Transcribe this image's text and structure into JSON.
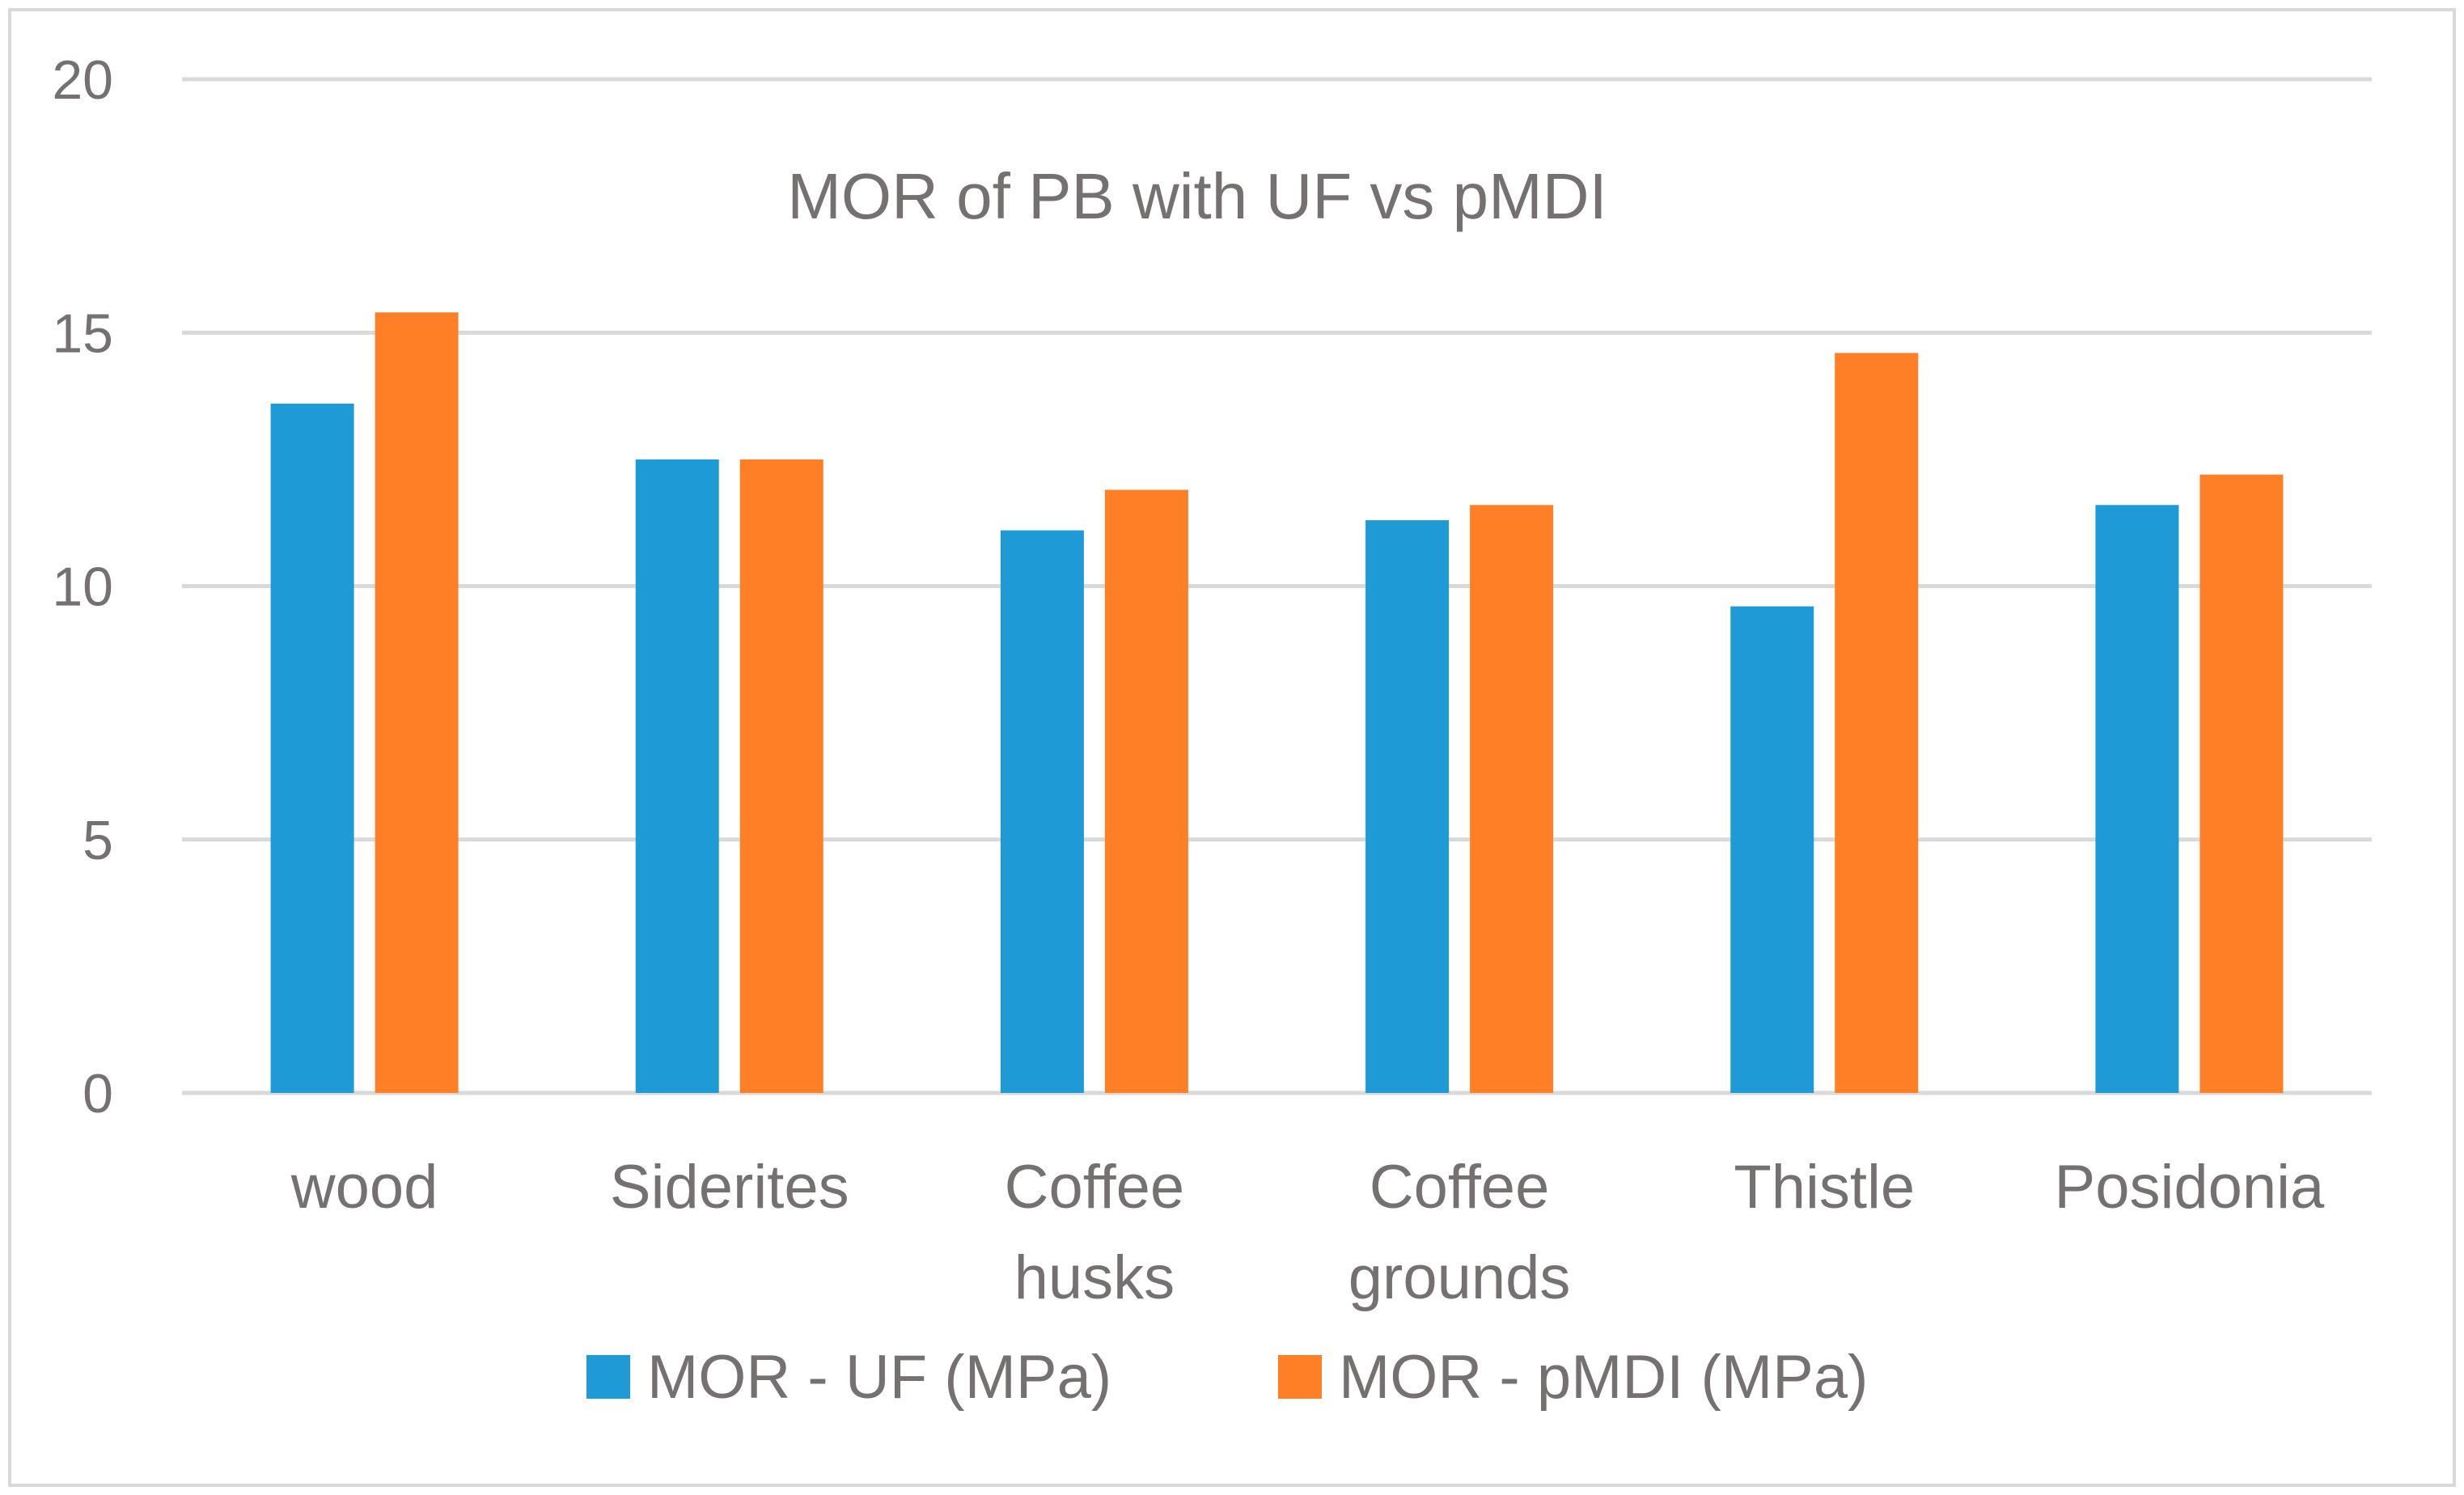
{
  "chart_data": {
    "type": "bar",
    "title": "MOR of PB with UF vs pMDI",
    "xlabel": "",
    "ylabel": "",
    "categories": [
      [
        "wood"
      ],
      [
        "Siderites"
      ],
      [
        "Coffee",
        "husks"
      ],
      [
        "Coffee",
        "grounds"
      ],
      [
        "Thistle"
      ],
      [
        "Posidonia"
      ]
    ],
    "series": [
      {
        "name": "MOR - UF (MPa)",
        "color": "#1E9BD7",
        "values": [
          13.6,
          12.5,
          11.1,
          11.3,
          9.6,
          11.6
        ]
      },
      {
        "name": "MOR - pMDI (MPa)",
        "color": "#FF7F27",
        "values": [
          15.4,
          12.5,
          11.9,
          11.6,
          14.6,
          12.2
        ]
      }
    ],
    "ylim": [
      0,
      20
    ],
    "yticks": [
      "0",
      "5",
      "10",
      "15",
      "20"
    ],
    "grid": true,
    "legend": "bottom"
  },
  "colors": {
    "grid": "#D9D9D9",
    "text": "#767171",
    "border": "#D9D9D9"
  }
}
